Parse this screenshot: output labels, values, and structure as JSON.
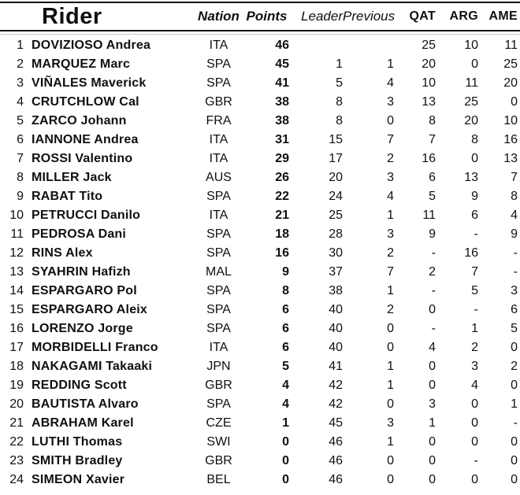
{
  "colors": {
    "text": "#101010",
    "rule": "#101010",
    "ghost_rule": "#c9c9c9",
    "background": "#ffffff"
  },
  "header": {
    "rider": "Rider",
    "nation": "Nation",
    "points": "Points",
    "leader": "Leader",
    "previous": "Previous",
    "qat": "QAT",
    "arg": "ARG",
    "ame": "AME"
  },
  "rows": [
    {
      "pos": "1",
      "name": "DOVIZIOSO Andrea",
      "nation": "ITA",
      "points": "46",
      "leader": "",
      "previous": "",
      "qat": "25",
      "arg": "10",
      "ame": "11"
    },
    {
      "pos": "2",
      "name": "MARQUEZ Marc",
      "nation": "SPA",
      "points": "45",
      "leader": "1",
      "previous": "1",
      "qat": "20",
      "arg": "0",
      "ame": "25"
    },
    {
      "pos": "3",
      "name": "VIÑALES Maverick",
      "nation": "SPA",
      "points": "41",
      "leader": "5",
      "previous": "4",
      "qat": "10",
      "arg": "11",
      "ame": "20"
    },
    {
      "pos": "4",
      "name": "CRUTCHLOW Cal",
      "nation": "GBR",
      "points": "38",
      "leader": "8",
      "previous": "3",
      "qat": "13",
      "arg": "25",
      "ame": "0"
    },
    {
      "pos": "5",
      "name": "ZARCO Johann",
      "nation": "FRA",
      "points": "38",
      "leader": "8",
      "previous": "0",
      "qat": "8",
      "arg": "20",
      "ame": "10"
    },
    {
      "pos": "6",
      "name": "IANNONE Andrea",
      "nation": "ITA",
      "points": "31",
      "leader": "15",
      "previous": "7",
      "qat": "7",
      "arg": "8",
      "ame": "16"
    },
    {
      "pos": "7",
      "name": "ROSSI Valentino",
      "nation": "ITA",
      "points": "29",
      "leader": "17",
      "previous": "2",
      "qat": "16",
      "arg": "0",
      "ame": "13"
    },
    {
      "pos": "8",
      "name": "MILLER Jack",
      "nation": "AUS",
      "points": "26",
      "leader": "20",
      "previous": "3",
      "qat": "6",
      "arg": "13",
      "ame": "7"
    },
    {
      "pos": "9",
      "name": "RABAT Tito",
      "nation": "SPA",
      "points": "22",
      "leader": "24",
      "previous": "4",
      "qat": "5",
      "arg": "9",
      "ame": "8"
    },
    {
      "pos": "10",
      "name": "PETRUCCI Danilo",
      "nation": "ITA",
      "points": "21",
      "leader": "25",
      "previous": "1",
      "qat": "11",
      "arg": "6",
      "ame": "4"
    },
    {
      "pos": "11",
      "name": "PEDROSA Dani",
      "nation": "SPA",
      "points": "18",
      "leader": "28",
      "previous": "3",
      "qat": "9",
      "arg": "-",
      "ame": "9"
    },
    {
      "pos": "12",
      "name": "RINS Alex",
      "nation": "SPA",
      "points": "16",
      "leader": "30",
      "previous": "2",
      "qat": "-",
      "arg": "16",
      "ame": "-"
    },
    {
      "pos": "13",
      "name": "SYAHRIN Hafizh",
      "nation": "MAL",
      "points": "9",
      "leader": "37",
      "previous": "7",
      "qat": "2",
      "arg": "7",
      "ame": "-"
    },
    {
      "pos": "14",
      "name": "ESPARGARO Pol",
      "nation": "SPA",
      "points": "8",
      "leader": "38",
      "previous": "1",
      "qat": "-",
      "arg": "5",
      "ame": "3"
    },
    {
      "pos": "15",
      "name": "ESPARGARO Aleix",
      "nation": "SPA",
      "points": "6",
      "leader": "40",
      "previous": "2",
      "qat": "0",
      "arg": "-",
      "ame": "6"
    },
    {
      "pos": "16",
      "name": "LORENZO Jorge",
      "nation": "SPA",
      "points": "6",
      "leader": "40",
      "previous": "0",
      "qat": "-",
      "arg": "1",
      "ame": "5"
    },
    {
      "pos": "17",
      "name": "MORBIDELLI Franco",
      "nation": "ITA",
      "points": "6",
      "leader": "40",
      "previous": "0",
      "qat": "4",
      "arg": "2",
      "ame": "0"
    },
    {
      "pos": "18",
      "name": "NAKAGAMI Takaaki",
      "nation": "JPN",
      "points": "5",
      "leader": "41",
      "previous": "1",
      "qat": "0",
      "arg": "3",
      "ame": "2"
    },
    {
      "pos": "19",
      "name": "REDDING Scott",
      "nation": "GBR",
      "points": "4",
      "leader": "42",
      "previous": "1",
      "qat": "0",
      "arg": "4",
      "ame": "0"
    },
    {
      "pos": "20",
      "name": "BAUTISTA Alvaro",
      "nation": "SPA",
      "points": "4",
      "leader": "42",
      "previous": "0",
      "qat": "3",
      "arg": "0",
      "ame": "1"
    },
    {
      "pos": "21",
      "name": "ABRAHAM Karel",
      "nation": "CZE",
      "points": "1",
      "leader": "45",
      "previous": "3",
      "qat": "1",
      "arg": "0",
      "ame": "-"
    },
    {
      "pos": "22",
      "name": "LUTHI Thomas",
      "nation": "SWI",
      "points": "0",
      "leader": "46",
      "previous": "1",
      "qat": "0",
      "arg": "0",
      "ame": "0"
    },
    {
      "pos": "23",
      "name": "SMITH Bradley",
      "nation": "GBR",
      "points": "0",
      "leader": "46",
      "previous": "0",
      "qat": "0",
      "arg": "-",
      "ame": "0"
    },
    {
      "pos": "24",
      "name": "SIMEON Xavier",
      "nation": "BEL",
      "points": "0",
      "leader": "46",
      "previous": "0",
      "qat": "0",
      "arg": "0",
      "ame": "0"
    }
  ]
}
